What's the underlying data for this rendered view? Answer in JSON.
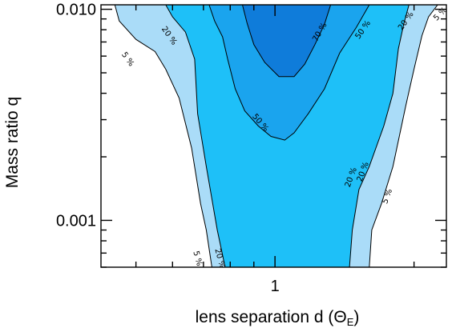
{
  "chart_data": {
    "type": "contour",
    "xlabel": "lens separation d (Θ",
    "xlabel_sub": "E",
    "xlabel_close": ")",
    "ylabel": "Mass ratio q",
    "x_scale": "log",
    "y_scale": "log",
    "xlim": [
      0.42,
      2.35
    ],
    "ylim": [
      0.0006,
      0.0105
    ],
    "x_ticks": [
      {
        "value": 1,
        "label": "1"
      }
    ],
    "y_ticks": [
      {
        "value": 0.001,
        "label": "0.001"
      },
      {
        "value": 0.01,
        "label": "0.010"
      }
    ],
    "y_minor_ticks": [
      0.0006,
      0.0007,
      0.0008,
      0.0009,
      0.002,
      0.003,
      0.004,
      0.005,
      0.006,
      0.007,
      0.008,
      0.009
    ],
    "x_minor_ticks": [
      0.5,
      0.6,
      0.7,
      0.8,
      0.9,
      2
    ],
    "levels": [
      {
        "level": 5,
        "color": "#aadcf8",
        "boundary": [
          [
            0.45,
            0.0105
          ],
          [
            0.46,
            0.0088
          ],
          [
            0.5,
            0.0072
          ],
          [
            0.55,
            0.0063
          ],
          [
            0.58,
            0.0052
          ],
          [
            0.62,
            0.0038
          ],
          [
            0.66,
            0.0022
          ],
          [
            0.69,
            0.0012
          ],
          [
            0.71,
            0.0009
          ],
          [
            0.73,
            0.0006
          ],
          [
            1.6,
            0.0006
          ],
          [
            1.62,
            0.0009
          ],
          [
            1.7,
            0.0012
          ],
          [
            1.8,
            0.0018
          ],
          [
            1.92,
            0.0035
          ],
          [
            2.0,
            0.0052
          ],
          [
            2.08,
            0.0075
          ],
          [
            2.15,
            0.0092
          ],
          [
            2.25,
            0.0105
          ]
        ]
      },
      {
        "level": 20,
        "color": "#1ec0f8",
        "boundary": [
          [
            0.58,
            0.0105
          ],
          [
            0.6,
            0.0092
          ],
          [
            0.64,
            0.0078
          ],
          [
            0.67,
            0.0058
          ],
          [
            0.68,
            0.0032
          ],
          [
            0.71,
            0.0018
          ],
          [
            0.75,
            0.0009
          ],
          [
            0.78,
            0.0006
          ],
          [
            1.45,
            0.0006
          ],
          [
            1.47,
            0.0009
          ],
          [
            1.52,
            0.0014
          ],
          [
            1.6,
            0.0018
          ],
          [
            1.72,
            0.0028
          ],
          [
            1.8,
            0.004
          ],
          [
            1.85,
            0.0065
          ],
          [
            1.9,
            0.0085
          ],
          [
            1.95,
            0.0105
          ]
        ]
      },
      {
        "level": 50,
        "color": "#1aa4ee",
        "boundary": [
          [
            0.72,
            0.0105
          ],
          [
            0.74,
            0.0088
          ],
          [
            0.77,
            0.0074
          ],
          [
            0.79,
            0.0058
          ],
          [
            0.82,
            0.0042
          ],
          [
            0.86,
            0.0033
          ],
          [
            0.92,
            0.0028
          ],
          [
            0.98,
            0.0025
          ],
          [
            1.05,
            0.0024
          ],
          [
            1.1,
            0.0026
          ],
          [
            1.18,
            0.0032
          ],
          [
            1.28,
            0.0042
          ],
          [
            1.38,
            0.0062
          ],
          [
            1.5,
            0.0082
          ],
          [
            1.6,
            0.0105
          ]
        ]
      },
      {
        "level": 70,
        "color": "#0f7cda",
        "boundary": [
          [
            0.85,
            0.0105
          ],
          [
            0.87,
            0.0086
          ],
          [
            0.9,
            0.0068
          ],
          [
            0.95,
            0.0056
          ],
          [
            1.02,
            0.0048
          ],
          [
            1.1,
            0.0048
          ],
          [
            1.16,
            0.0055
          ],
          [
            1.22,
            0.0068
          ],
          [
            1.28,
            0.0085
          ],
          [
            1.32,
            0.0105
          ]
        ]
      }
    ],
    "contour_labels": [
      {
        "text": "5 %",
        "level": 5,
        "x": 0.48,
        "y": 0.0058,
        "angle": 55
      },
      {
        "text": "20 %",
        "level": 20,
        "x": 0.59,
        "y": 0.0075,
        "angle": 55
      },
      {
        "text": "70 %",
        "level": 70,
        "x": 1.25,
        "y": 0.0078,
        "angle": -60
      },
      {
        "text": "50 %",
        "level": 50,
        "x": 1.55,
        "y": 0.008,
        "angle": -55
      },
      {
        "text": "20 %",
        "level": 20,
        "x": 1.92,
        "y": 0.0088,
        "angle": -55
      },
      {
        "text": "5 %",
        "level": 5,
        "x": 2.28,
        "y": 0.0095,
        "angle": -45
      },
      {
        "text": "50 %",
        "level": 50,
        "x": 0.93,
        "y": 0.0029,
        "angle": 50
      },
      {
        "text": "20 %",
        "level": 20,
        "x": 1.46,
        "y": 0.0016,
        "angle": -70
      },
      {
        "text": "20 %",
        "level": 20,
        "x": 1.55,
        "y": 0.0017,
        "angle": -70
      },
      {
        "text": "5 %",
        "level": 5,
        "x": 1.75,
        "y": 0.0013,
        "angle": -70
      },
      {
        "text": "5 %",
        "level": 5,
        "x": 0.68,
        "y": 0.00066,
        "angle": 75
      },
      {
        "text": "20 %",
        "level": 20,
        "x": 0.76,
        "y": 0.00066,
        "angle": 75
      }
    ]
  }
}
